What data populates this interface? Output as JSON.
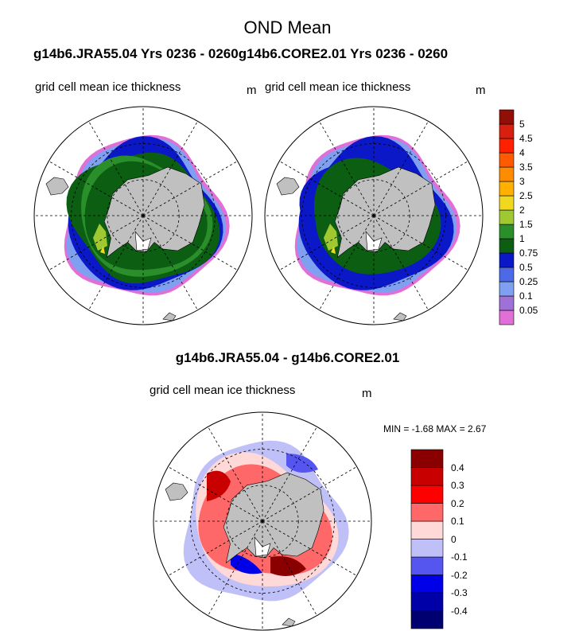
{
  "figure": {
    "title": "OND Mean",
    "subtitle": "g14b6.JRA55.04  Yrs 0236 - 0260g14b6.CORE2.01  Yrs 0236 - 0260",
    "diff_title": "g14b6.JRA55.04 - g14b6.CORE2.01",
    "minmax_text": "MIN =  -1.68 MAX =   2.67"
  },
  "chart_data": [
    {
      "type": "heatmap",
      "name": "g14b6.JRA55.04",
      "panel_label": "grid cell mean ice thickness",
      "units": "m",
      "projection": "south-polar-stereographic",
      "description_ref": "Southern Ocean sea ice thickness around Antarctica"
    },
    {
      "type": "heatmap",
      "name": "g14b6.CORE2.01",
      "panel_label": "grid cell mean ice thickness",
      "units": "m",
      "projection": "south-polar-stereographic"
    },
    {
      "type": "heatmap",
      "name": "difference",
      "panel_label": "grid cell mean ice thickness",
      "units": "m",
      "projection": "south-polar-stereographic",
      "min": -1.68,
      "max": 2.67
    }
  ],
  "colorbars": {
    "thickness": {
      "colors": [
        "#e070d8",
        "#9f70d8",
        "#7f9ff0",
        "#4c6ae8",
        "#0a18c8",
        "#0b5e12",
        "#2a8e2a",
        "#a0c830",
        "#f0d820",
        "#ffb000",
        "#ff8c00",
        "#ff5a00",
        "#ff2000",
        "#d82010",
        "#901008"
      ],
      "labels": [
        "0.05",
        "0.1",
        "0.25",
        "0.5",
        "0.75",
        "1",
        "1.5",
        "2",
        "2.5",
        "3",
        "3.5",
        "4",
        "4.5",
        "5"
      ]
    },
    "difference": {
      "colors": [
        "#000070",
        "#0000a8",
        "#0000e8",
        "#5555f0",
        "#c0c0f8",
        "#ffd8d8",
        "#ff6868",
        "#ff0000",
        "#c80000",
        "#8a0000"
      ],
      "labels": [
        "-0.4",
        "-0.3",
        "-0.2",
        "-0.1",
        "0",
        "0.1",
        "0.2",
        "0.3",
        "0.4"
      ]
    }
  },
  "colors": {
    "land": "#c0c0c0",
    "ocean": "#ffffff",
    "grid": "#000000"
  }
}
